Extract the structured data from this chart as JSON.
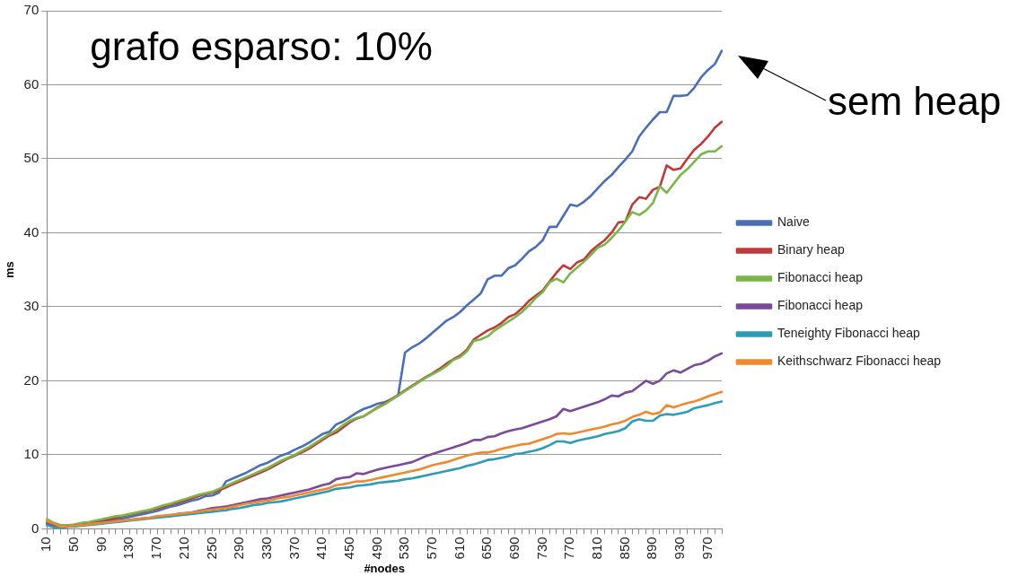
{
  "chart_data": {
    "type": "line",
    "categories": [
      "10",
      null,
      null,
      null,
      "50",
      null,
      null,
      null,
      "90",
      null,
      null,
      null,
      "130",
      null,
      null,
      null,
      "170",
      null,
      null,
      null,
      "210",
      null,
      null,
      null,
      "250",
      null,
      null,
      null,
      "290",
      null,
      null,
      null,
      "330",
      null,
      null,
      null,
      "370",
      null,
      null,
      null,
      "410",
      null,
      null,
      null,
      "450",
      null,
      null,
      null,
      "490",
      null,
      null,
      null,
      "530",
      null,
      null,
      null,
      "570",
      null,
      null,
      null,
      "610",
      null,
      null,
      null,
      "650",
      null,
      null,
      null,
      "690",
      null,
      null,
      null,
      "730",
      null,
      null,
      null,
      "770",
      null,
      null,
      null,
      "810",
      null,
      null,
      null,
      "850",
      null,
      null,
      null,
      "890",
      null,
      null,
      null,
      "930",
      null,
      null,
      null,
      "970",
      null,
      null
    ],
    "xlabel": "#nodes",
    "ylabel": "ms",
    "ylim": [
      0,
      70
    ],
    "yticks": [
      0,
      10,
      20,
      30,
      40,
      50,
      60,
      70
    ],
    "grid": "y",
    "legend": "right",
    "annotations": [
      "grafo esparso: 10%",
      "sem heap"
    ],
    "series": [
      {
        "name": "Naive",
        "color": "#4a6fb5",
        "values": [
          0.8,
          0.4,
          0.2,
          0.3,
          0.4,
          0.6,
          0.7,
          0.8,
          1.0,
          1.1,
          1.3,
          1.4,
          1.6,
          1.8,
          2.0,
          2.2,
          2.4,
          2.7,
          3.0,
          3.2,
          3.5,
          3.8,
          4.0,
          4.4,
          4.5,
          4.9,
          6.4,
          6.8,
          7.2,
          7.6,
          8.1,
          8.6,
          8.9,
          9.4,
          9.9,
          10.2,
          10.7,
          11.1,
          11.6,
          12.2,
          12.8,
          13.1,
          14.1,
          14.5,
          15.1,
          15.7,
          16.2,
          16.5,
          16.9,
          17.1,
          17.5,
          18.0,
          23.8,
          24.5,
          25.0,
          25.7,
          26.5,
          27.3,
          28.1,
          28.6,
          29.3,
          30.2,
          31.0,
          31.8,
          33.7,
          34.2,
          34.2,
          35.2,
          35.6,
          36.5,
          37.5,
          38.1,
          39.0,
          40.8,
          40.8,
          42.3,
          43.8,
          43.6,
          44.2,
          45.0,
          46.0,
          47.0,
          47.8,
          48.9,
          49.9,
          51.0,
          53.0,
          54.2,
          55.3,
          56.3,
          56.3,
          58.5,
          58.5,
          58.6,
          59.6,
          61.0,
          62.0,
          62.8,
          64.6
        ]
      },
      {
        "name": "Binary heap",
        "color": "#be3a3a",
        "values": [
          1.0,
          0.6,
          0.3,
          0.4,
          0.5,
          0.7,
          0.8,
          1.0,
          1.2,
          1.3,
          1.5,
          1.7,
          1.9,
          2.1,
          2.3,
          2.5,
          2.7,
          3.0,
          3.3,
          3.5,
          3.8,
          4.1,
          4.4,
          4.7,
          4.9,
          5.2,
          5.6,
          6.0,
          6.4,
          6.8,
          7.2,
          7.6,
          8.0,
          8.5,
          9.0,
          9.5,
          9.9,
          10.3,
          10.8,
          11.4,
          12.0,
          12.6,
          13.0,
          13.7,
          14.4,
          14.9,
          15.2,
          15.8,
          16.4,
          16.9,
          17.5,
          18.1,
          18.7,
          19.3,
          19.9,
          20.5,
          21.0,
          21.6,
          22.3,
          22.9,
          23.4,
          24.2,
          25.6,
          26.2,
          26.8,
          27.2,
          27.8,
          28.6,
          29.0,
          29.8,
          30.8,
          31.5,
          32.2,
          33.4,
          34.6,
          35.6,
          35.1,
          36.0,
          36.4,
          37.5,
          38.3,
          39.0,
          40.0,
          41.4,
          41.5,
          43.8,
          44.8,
          44.6,
          45.8,
          46.2,
          49.1,
          48.5,
          48.7,
          50.0,
          51.2,
          52.0,
          53.0,
          54.2,
          55.0
        ]
      },
      {
        "name": "Fibonacci heap",
        "color": "#7ab648",
        "values": [
          1.3,
          0.8,
          0.5,
          0.5,
          0.6,
          0.8,
          0.9,
          1.1,
          1.3,
          1.5,
          1.7,
          1.8,
          2.0,
          2.2,
          2.4,
          2.6,
          2.9,
          3.2,
          3.4,
          3.7,
          4.0,
          4.3,
          4.6,
          4.8,
          5.0,
          5.4,
          5.8,
          6.2,
          6.6,
          7.0,
          7.4,
          7.8,
          8.2,
          8.7,
          9.2,
          9.6,
          10.0,
          10.5,
          11.0,
          11.6,
          12.2,
          12.8,
          13.3,
          14.0,
          14.6,
          15.0,
          15.2,
          15.8,
          16.3,
          16.8,
          17.4,
          18.0,
          18.6,
          19.2,
          19.8,
          20.4,
          20.9,
          21.4,
          22.0,
          22.8,
          23.2,
          24.0,
          25.4,
          25.6,
          26.0,
          26.8,
          27.4,
          28.0,
          28.6,
          29.3,
          30.2,
          31.2,
          32.0,
          33.3,
          33.8,
          33.3,
          34.5,
          35.3,
          36.1,
          37.0,
          38.0,
          38.4,
          39.3,
          40.3,
          41.5,
          42.8,
          42.4,
          43.0,
          44.0,
          46.3,
          45.4,
          46.6,
          47.8,
          48.6,
          49.6,
          50.6,
          51.0,
          51.0,
          51.7
        ]
      },
      {
        "name": "Fibonacci heap",
        "color": "#7b4a9a",
        "values": [
          0.7,
          0.4,
          0.2,
          0.3,
          0.4,
          0.5,
          0.6,
          0.7,
          0.8,
          0.9,
          1.0,
          1.1,
          1.2,
          1.3,
          1.4,
          1.5,
          1.6,
          1.7,
          1.8,
          2.0,
          2.1,
          2.2,
          2.4,
          2.6,
          2.8,
          2.9,
          3.0,
          3.2,
          3.4,
          3.6,
          3.8,
          4.0,
          4.1,
          4.3,
          4.5,
          4.7,
          4.9,
          5.1,
          5.3,
          5.6,
          5.9,
          6.1,
          6.7,
          6.9,
          7.0,
          7.5,
          7.4,
          7.7,
          8.0,
          8.2,
          8.4,
          8.6,
          8.8,
          9.0,
          9.4,
          9.8,
          10.1,
          10.4,
          10.7,
          11.0,
          11.3,
          11.6,
          12.0,
          12.0,
          12.4,
          12.5,
          12.9,
          13.2,
          13.4,
          13.6,
          13.9,
          14.2,
          14.5,
          14.8,
          15.2,
          16.2,
          15.9,
          16.2,
          16.5,
          16.8,
          17.1,
          17.5,
          18.0,
          17.9,
          18.4,
          18.6,
          19.3,
          20.0,
          19.6,
          20.0,
          21.0,
          21.4,
          21.1,
          21.6,
          22.1,
          22.3,
          22.7,
          23.3,
          23.7
        ]
      },
      {
        "name": "Teneighty Fibonacci heap",
        "color": "#2f9bb5",
        "values": [
          0.5,
          0.2,
          0.1,
          0.3,
          0.3,
          0.4,
          0.5,
          0.6,
          0.7,
          0.8,
          0.9,
          1.0,
          1.1,
          1.2,
          1.3,
          1.4,
          1.5,
          1.6,
          1.7,
          1.8,
          1.9,
          2.0,
          2.1,
          2.2,
          2.3,
          2.4,
          2.5,
          2.7,
          2.8,
          3.0,
          3.2,
          3.3,
          3.5,
          3.6,
          3.7,
          3.9,
          4.1,
          4.3,
          4.5,
          4.7,
          4.9,
          5.1,
          5.4,
          5.5,
          5.6,
          5.8,
          5.9,
          6.0,
          6.2,
          6.3,
          6.4,
          6.5,
          6.7,
          6.8,
          7.0,
          7.2,
          7.4,
          7.6,
          7.8,
          8.0,
          8.2,
          8.5,
          8.7,
          9.0,
          9.3,
          9.4,
          9.6,
          9.8,
          10.1,
          10.2,
          10.4,
          10.6,
          10.9,
          11.3,
          11.8,
          11.8,
          11.6,
          11.9,
          12.1,
          12.3,
          12.5,
          12.8,
          13.0,
          13.2,
          13.6,
          14.5,
          14.8,
          14.6,
          14.6,
          15.3,
          15.5,
          15.4,
          15.6,
          15.8,
          16.3,
          16.5,
          16.7,
          17.0,
          17.2
        ]
      },
      {
        "name": "Keithschwarz Fibonacci heap",
        "color": "#f0892e",
        "values": [
          1.0,
          0.7,
          0.3,
          0.3,
          0.4,
          0.5,
          0.6,
          0.7,
          0.8,
          0.9,
          1.0,
          1.1,
          1.2,
          1.3,
          1.4,
          1.5,
          1.7,
          1.8,
          1.9,
          2.0,
          2.1,
          2.2,
          2.3,
          2.5,
          2.6,
          2.7,
          2.8,
          3.0,
          3.2,
          3.4,
          3.5,
          3.7,
          3.8,
          4.0,
          4.2,
          4.3,
          4.5,
          4.7,
          4.9,
          5.1,
          5.3,
          5.5,
          5.9,
          6.0,
          6.2,
          6.4,
          6.4,
          6.6,
          6.8,
          7.0,
          7.2,
          7.4,
          7.6,
          7.8,
          8.0,
          8.3,
          8.6,
          8.8,
          9.0,
          9.3,
          9.6,
          9.9,
          10.1,
          10.3,
          10.3,
          10.5,
          10.8,
          11.0,
          11.2,
          11.4,
          11.5,
          11.8,
          12.1,
          12.4,
          12.8,
          12.9,
          12.8,
          13.0,
          13.2,
          13.4,
          13.6,
          13.8,
          14.1,
          14.3,
          14.6,
          15.1,
          15.4,
          15.8,
          15.5,
          15.7,
          16.7,
          16.4,
          16.7,
          17.0,
          17.2,
          17.5,
          17.9,
          18.2,
          18.5
        ]
      }
    ]
  }
}
